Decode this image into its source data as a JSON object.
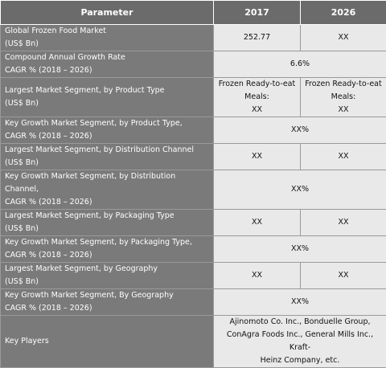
{
  "table": {
    "headers": [
      "Parameter",
      "2017",
      "2026"
    ],
    "rows": [
      {
        "param": [
          "Global Frozen Food Market",
          "(US$ Bn)"
        ],
        "v2017": "252.77",
        "v2026": "XX"
      },
      {
        "param": [
          "Compound Annual Growth Rate",
          "CAGR % (2018 – 2026)"
        ],
        "merged": "6.6%"
      },
      {
        "param": [
          "Largest Market Segment, by Product Type",
          "(US$ Bn)"
        ],
        "v2017": [
          "Frozen Ready-to-eat",
          "Meals:",
          "XX"
        ],
        "v2026": [
          "Frozen Ready-to-eat",
          "Meals:",
          "XX"
        ]
      },
      {
        "param": [
          "Key Growth Market Segment, by Product Type,",
          "CAGR % (2018 – 2026)"
        ],
        "merged": "XX%"
      },
      {
        "param": [
          "Largest Market Segment, by Distribution Channel",
          "(US$ Bn)"
        ],
        "v2017": "XX",
        "v2026": "XX"
      },
      {
        "param": [
          "Key Growth Market Segment, by Distribution Channel,",
          "CAGR % (2018 – 2026)"
        ],
        "merged": "XX%"
      },
      {
        "param": [
          "Largest Market Segment, by Packaging Type",
          "(US$ Bn)"
        ],
        "v2017": "XX",
        "v2026": "XX"
      },
      {
        "param": [
          "Key Growth Market Segment, by Packaging Type,",
          "CAGR % (2018 – 2026)"
        ],
        "merged": "XX%"
      },
      {
        "param": [
          "Largest Market Segment, by Geography",
          "(US$ Bn)"
        ],
        "v2017": "XX",
        "v2026": "XX"
      },
      {
        "param": [
          "Key Growth Market Segment, By Geography",
          "CAGR % (2018 – 2026)"
        ],
        "merged": "XX%"
      },
      {
        "param": [
          "Key Players"
        ],
        "merged": [
          "Ajinomoto Co. Inc., Bonduelle Group,",
          "ConAgra Foods Inc., General Mills Inc., Kraft-",
          "Heinz Company, etc."
        ]
      }
    ]
  },
  "colors": {
    "header_bg": "#6b6b6b",
    "param_bg": "#7a7a7a",
    "value_bg": "#e9e9e9",
    "header_text": "#ffffff"
  }
}
